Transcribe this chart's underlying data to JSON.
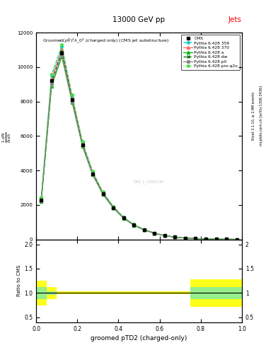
{
  "title_top": "13000 GeV pp",
  "title_right": "Jets",
  "plot_title": "Groomed$(p_T^D)^2\\lambda\\_0^2$ (charged only) (CMS jet substructure)",
  "xlabel": "groomed pTD2 (charged-only)",
  "right_label1": "Rivet 3.1.10, ≥ 2.9M events",
  "right_label2": "mcplots.cern.ch [arXiv:1306.3436]",
  "watermark": "CMS_1_11920187",
  "x_bins": [
    0.0,
    0.05,
    0.1,
    0.15,
    0.2,
    0.25,
    0.3,
    0.35,
    0.4,
    0.45,
    0.5,
    0.55,
    0.6,
    0.65,
    0.7,
    0.75,
    0.8,
    0.85,
    0.9,
    0.95,
    1.0
  ],
  "cms_y": [
    2300,
    9200,
    10800,
    8100,
    5500,
    3800,
    2650,
    1850,
    1250,
    840,
    560,
    360,
    220,
    135,
    82,
    48,
    28,
    15,
    8,
    4
  ],
  "pythia_359_y": [
    2400,
    9500,
    11200,
    8300,
    5650,
    3900,
    2720,
    1900,
    1280,
    860,
    570,
    370,
    225,
    138,
    84,
    50,
    29,
    16,
    8,
    4
  ],
  "pythia_370_y": [
    2350,
    9300,
    11000,
    8200,
    5580,
    3840,
    2680,
    1870,
    1260,
    845,
    560,
    362,
    220,
    135,
    82,
    48,
    28,
    15,
    8,
    4
  ],
  "pythia_a_y": [
    2200,
    8900,
    10600,
    7950,
    5420,
    3740,
    2610,
    1820,
    1230,
    826,
    548,
    353,
    215,
    132,
    80,
    47,
    27,
    14,
    7,
    3.5
  ],
  "pythia_dw_y": [
    2300,
    9100,
    10900,
    8100,
    5520,
    3810,
    2660,
    1860,
    1255,
    843,
    560,
    362,
    220,
    135,
    82,
    48,
    28,
    15,
    8,
    4
  ],
  "pythia_p0_y": [
    2250,
    9000,
    10700,
    8000,
    5460,
    3770,
    2630,
    1840,
    1240,
    832,
    552,
    356,
    217,
    133,
    81,
    47,
    27,
    15,
    7,
    3.5
  ],
  "pythia_proq2o_y": [
    2450,
    9600,
    11300,
    8400,
    5700,
    3950,
    2760,
    1930,
    1300,
    873,
    578,
    373,
    228,
    140,
    85,
    50,
    29,
    16,
    8,
    4
  ],
  "ratio_yellow_lo": [
    0.75,
    0.88,
    0.97,
    0.97,
    0.97,
    0.97,
    0.97,
    0.97,
    0.97,
    0.97,
    0.97,
    0.97,
    0.97,
    0.97,
    0.97,
    0.72,
    0.72,
    0.72,
    0.72,
    0.72
  ],
  "ratio_yellow_hi": [
    1.25,
    1.12,
    1.03,
    1.03,
    1.03,
    1.03,
    1.03,
    1.03,
    1.03,
    1.03,
    1.03,
    1.03,
    1.03,
    1.03,
    1.03,
    1.28,
    1.28,
    1.28,
    1.28,
    1.28
  ],
  "ratio_green_lo": [
    0.88,
    0.96,
    0.99,
    0.99,
    0.99,
    0.99,
    0.99,
    0.99,
    0.99,
    0.99,
    0.99,
    0.99,
    0.99,
    0.99,
    0.99,
    0.88,
    0.88,
    0.88,
    0.88,
    0.88
  ],
  "ratio_green_hi": [
    1.12,
    1.04,
    1.01,
    1.01,
    1.01,
    1.01,
    1.01,
    1.01,
    1.01,
    1.01,
    1.01,
    1.01,
    1.01,
    1.01,
    1.01,
    1.12,
    1.12,
    1.12,
    1.12,
    1.12
  ],
  "color_359": "#00CCCC",
  "color_370": "#FF6666",
  "color_a": "#00BB00",
  "color_dw": "#006600",
  "color_p0": "#888888",
  "color_proq2o": "#44DD44",
  "ylim_main": [
    0,
    12000
  ],
  "yticks_main": [
    0,
    2000,
    4000,
    6000,
    8000,
    10000,
    12000
  ],
  "ylim_ratio": [
    0.4,
    2.1
  ],
  "yticks_ratio": [
    0.5,
    1.0,
    1.5,
    2.0
  ]
}
